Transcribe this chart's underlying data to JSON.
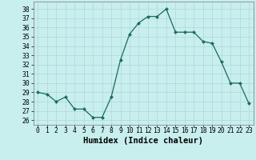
{
  "x": [
    0,
    1,
    2,
    3,
    4,
    5,
    6,
    7,
    8,
    9,
    10,
    11,
    12,
    13,
    14,
    15,
    16,
    17,
    18,
    19,
    20,
    21,
    22,
    23
  ],
  "y": [
    29.0,
    28.8,
    28.0,
    28.5,
    27.2,
    27.2,
    26.3,
    26.3,
    28.5,
    32.5,
    35.3,
    36.5,
    37.2,
    37.2,
    38.0,
    35.5,
    35.5,
    35.5,
    34.5,
    34.3,
    32.3,
    30.0,
    30.0,
    27.8
  ],
  "xlabel": "Humidex (Indice chaleur)",
  "ylabel_ticks": [
    26,
    27,
    28,
    29,
    30,
    31,
    32,
    33,
    34,
    35,
    36,
    37,
    38
  ],
  "xlim": [
    -0.5,
    23.5
  ],
  "ylim": [
    25.5,
    38.8
  ],
  "line_color": "#1a6b5a",
  "marker_color": "#1a6b5a",
  "bg_color": "#c8eeee",
  "grid_color": "#afd8d8",
  "tick_label_fontsize": 5.8,
  "xlabel_fontsize": 7.5,
  "x_tick_labels": [
    "0",
    "1",
    "2",
    "3",
    "4",
    "5",
    "6",
    "7",
    "8",
    "9",
    "10",
    "11",
    "12",
    "13",
    "14",
    "15",
    "16",
    "17",
    "18",
    "19",
    "20",
    "21",
    "22",
    "23"
  ]
}
